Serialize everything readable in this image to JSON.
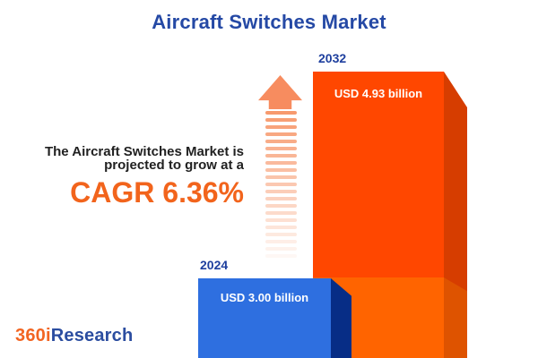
{
  "title": "Aircraft Switches Market",
  "chart_data": {
    "type": "bar",
    "title": "Aircraft Switches Market",
    "categories": [
      "2024",
      "2032"
    ],
    "values": [
      3.0,
      4.93
    ],
    "unit": "USD billion",
    "bar_labels": [
      "USD 3.00 billion",
      "USD 4.93 billion"
    ],
    "cagr_percent": 6.36,
    "annotation": "The Aircraft Switches Market is projected to grow at a CAGR 6.36%",
    "series_colors": [
      "#2E6FE0",
      "#FF4700"
    ],
    "legend": "none",
    "grid": false
  },
  "annotation": {
    "line1": "The Aircraft Switches Market is",
    "line2": "projected to grow at a",
    "cagr": "CAGR 6.36%"
  },
  "bars": {
    "b2024": {
      "year": "2024",
      "label": "USD 3.00 billion"
    },
    "b2032": {
      "year": "2032",
      "label": "USD 4.93 billion"
    }
  },
  "logo": {
    "prefix": "360i",
    "suffix": "Research"
  },
  "arrow": {
    "stripe_count": 21
  },
  "colors": {
    "title_blue": "#2549A5",
    "year_navy": "#1E3F9E",
    "text_dark": "#212121",
    "cagr_orange": "#F2641C",
    "blue_face": "#2E6FE0",
    "blue_side": "#072D86",
    "orange_face": "#FF4700",
    "orange_side": "#D63D00",
    "orange_lower_face": "#FF6400",
    "orange_lower_side": "#DE5300",
    "arrow": "#F78C5F",
    "arrow_stripe": "#F79A6E",
    "logo_orange": "#F26522",
    "logo_blue": "#2B4DA0",
    "bar_label_white": "#FFFFFF"
  }
}
